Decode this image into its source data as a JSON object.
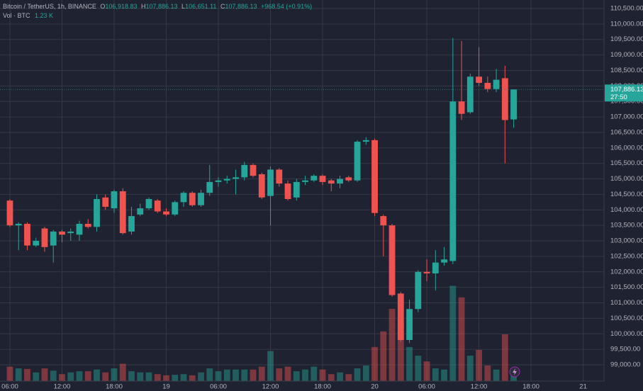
{
  "chart_data": {
    "type": "candlestick",
    "header": {
      "symbol": "Bitcoin / TetherUS, 1h, BINANCE",
      "o_label": "O",
      "open": "106,918.83",
      "h_label": "H",
      "high": "107,886.13",
      "l_label": "L",
      "low": "106,651.11",
      "c_label": "C",
      "close": "107,886.13",
      "change": "+968.54 (+0.91%)",
      "vol_label": "Vol · BTC",
      "vol": "1.23 K"
    },
    "last_price_label": "107,886.13",
    "countdown": "27:50",
    "up_color": "#26a69a",
    "down_color": "#ef5350",
    "open": [
      104300,
      103500,
      103550,
      102850,
      103400,
      102850,
      103300,
      103250,
      103200,
      103550,
      103450,
      104400,
      104050,
      104600,
      103300,
      103850,
      104050,
      104300,
      103950,
      103850,
      104250,
      104550,
      104150,
      104550,
      104900,
      104950,
      105000,
      105050,
      105450,
      105150,
      104450,
      105300,
      104850,
      104400,
      104900,
      104950,
      105100,
      104950,
      104850,
      105050,
      104950,
      106200,
      106250,
      103800,
      103500,
      101300,
      99800,
      100800,
      102000,
      101950,
      102300,
      102350,
      107500,
      107150,
      108300,
      108100,
      107900,
      108250,
      106918.83
    ],
    "high": [
      104350,
      103600,
      103600,
      103100,
      103450,
      103350,
      103350,
      103400,
      103650,
      103700,
      104500,
      104500,
      104650,
      104700,
      104100,
      104200,
      104400,
      104350,
      104050,
      104300,
      104600,
      104600,
      104650,
      105450,
      105050,
      105100,
      105300,
      105550,
      105500,
      105200,
      105400,
      105350,
      104950,
      105000,
      105100,
      105150,
      105150,
      105000,
      105100,
      105100,
      106250,
      106350,
      106300,
      103850,
      103550,
      101350,
      101100,
      102050,
      102400,
      102700,
      102800,
      109550,
      109450,
      108400,
      109250,
      108300,
      108550,
      108650,
      107886.13
    ],
    "low": [
      103450,
      102700,
      102700,
      102800,
      102650,
      102300,
      102950,
      103000,
      103000,
      103400,
      103300,
      104000,
      103900,
      103200,
      103200,
      103800,
      104000,
      103900,
      103800,
      103800,
      104100,
      104100,
      104100,
      104450,
      104750,
      104850,
      104500,
      104950,
      105050,
      104350,
      103500,
      104750,
      104300,
      104300,
      104800,
      104900,
      104800,
      104600,
      104700,
      104900,
      104900,
      106100,
      103800,
      102500,
      101200,
      99750,
      99700,
      100700,
      101700,
      101400,
      102200,
      102250,
      106900,
      107100,
      108000,
      107800,
      107800,
      105500,
      106651.11
    ],
    "close": [
      103500,
      103550,
      102850,
      103000,
      102800,
      103300,
      103200,
      103300,
      103550,
      103450,
      104350,
      104100,
      104600,
      103250,
      103800,
      104050,
      104350,
      103950,
      103850,
      104250,
      104550,
      104150,
      104550,
      104900,
      104950,
      105000,
      105050,
      105450,
      105100,
      104400,
      105300,
      104850,
      104350,
      104900,
      104950,
      105100,
      104900,
      104850,
      105000,
      104950,
      106200,
      106250,
      103900,
      103500,
      101250,
      99800,
      100800,
      102000,
      101950,
      102300,
      102400,
      107500,
      107100,
      108300,
      108100,
      107900,
      108200,
      106900,
      107886.13
    ],
    "volume": [
      2500,
      2200,
      2100,
      1500,
      2200,
      1800,
      1200,
      1500,
      1700,
      1700,
      2000,
      1500,
      2200,
      3000,
      1700,
      1500,
      1500,
      1200,
      1000,
      1100,
      1200,
      1000,
      1500,
      2200,
      1700,
      2000,
      2000,
      2000,
      2000,
      2500,
      5200,
      2200,
      2500,
      1700,
      2000,
      2500,
      2000,
      1200,
      1500,
      1200,
      2200,
      2700,
      5900,
      8600,
      12500,
      10100,
      5900,
      4400,
      3400,
      2200,
      2000,
      16500,
      14500,
      4400,
      5400,
      2700,
      2000,
      8100,
      1230
    ],
    "xlim": [
      -1.14,
      68.4
    ],
    "xticks": [
      {
        "value": 0,
        "label": "06:00"
      },
      {
        "value": 6,
        "label": "12:00"
      },
      {
        "value": 12,
        "label": "18:00"
      },
      {
        "value": 18,
        "label": "19"
      },
      {
        "value": 24,
        "label": "06:00"
      },
      {
        "value": 30,
        "label": "12:00"
      },
      {
        "value": 36,
        "label": "18:00"
      },
      {
        "value": 42,
        "label": "20"
      },
      {
        "value": 48,
        "label": "06:00"
      },
      {
        "value": 54,
        "label": "12:00"
      },
      {
        "value": 60,
        "label": "18:00"
      },
      {
        "value": 66,
        "label": "21"
      }
    ],
    "ylim": [
      98474,
      110774
    ],
    "yticks": [
      {
        "value": 99000,
        "label": "99,000.00"
      },
      {
        "value": 99500,
        "label": "99,500.00"
      },
      {
        "value": 100000,
        "label": "100,000.00"
      },
      {
        "value": 100500,
        "label": "100,500.00"
      },
      {
        "value": 101000,
        "label": "101,000.00"
      },
      {
        "value": 101500,
        "label": "101,500.00"
      },
      {
        "value": 102000,
        "label": "102,000.00"
      },
      {
        "value": 102500,
        "label": "102,500.00"
      },
      {
        "value": 103000,
        "label": "103,000.00"
      },
      {
        "value": 103500,
        "label": "103,500.00"
      },
      {
        "value": 104000,
        "label": "104,000.00"
      },
      {
        "value": 104500,
        "label": "104,500.00"
      },
      {
        "value": 105000,
        "label": "105,000.00"
      },
      {
        "value": 105500,
        "label": "105,500.00"
      },
      {
        "value": 106000,
        "label": "106,000.00"
      },
      {
        "value": 106500,
        "label": "106,500.00"
      },
      {
        "value": 107000,
        "label": "107,000.00"
      },
      {
        "value": 107500,
        "label": "107,500.00"
      },
      {
        "value": 108000,
        "label": "108,000.00"
      },
      {
        "value": 108500,
        "label": "108,500.00"
      },
      {
        "value": 109000,
        "label": "109,000.00"
      },
      {
        "value": 109500,
        "label": "109,500.00"
      },
      {
        "value": 110000,
        "label": "110,000.00"
      },
      {
        "value": 110500,
        "label": "110,500.00"
      }
    ],
    "y2lim": [
      0,
      66000
    ],
    "grid": true
  }
}
